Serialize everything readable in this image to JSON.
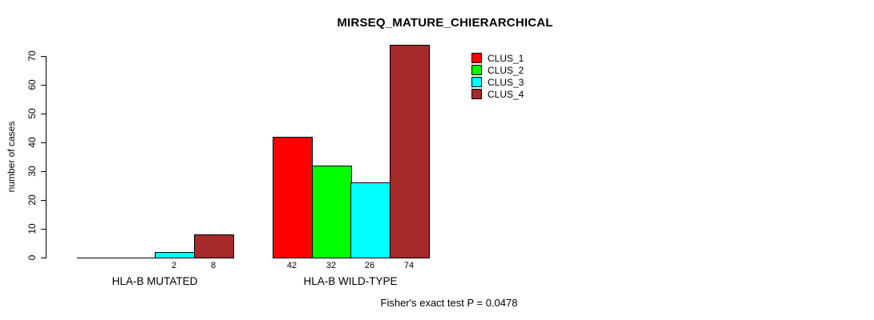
{
  "title": "MIRSEQ_MATURE_CHIERARCHICAL",
  "footer": "Fisher's exact test P = 0.0478",
  "chart_data": {
    "type": "bar",
    "title": "MIRSEQ_MATURE_CHIERARCHICAL",
    "xlabel": "",
    "ylabel": "number of cases",
    "ylim": [
      0,
      70
    ],
    "yticks": [
      0,
      10,
      20,
      30,
      40,
      50,
      60,
      70
    ],
    "grid": false,
    "legend_position": "top-right",
    "categories": [
      "HLA-B MUTATED",
      "HLA-B WILD-TYPE"
    ],
    "series": [
      {
        "name": "CLUS_1",
        "color": "#FF0000",
        "values": [
          0,
          42
        ]
      },
      {
        "name": "CLUS_2",
        "color": "#00FF00",
        "values": [
          0,
          32
        ]
      },
      {
        "name": "CLUS_3",
        "color": "#00FFFF",
        "values": [
          2,
          26
        ]
      },
      {
        "name": "CLUS_4",
        "color": "#A52A2A",
        "values": [
          8,
          74
        ]
      }
    ],
    "bar_value_labels": {
      "shown": true,
      "hidden_for_zero": true
    },
    "annotation": "Fisher's exact test P = 0.0478"
  }
}
